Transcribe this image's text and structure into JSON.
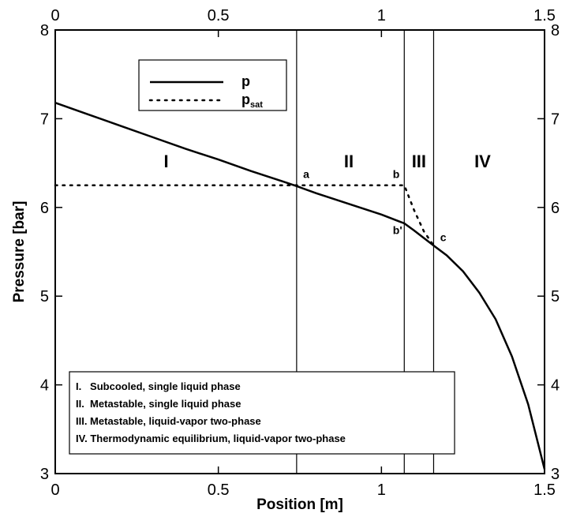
{
  "chart_data": {
    "type": "line",
    "xlabel": "Position [m]",
    "ylabel": "Pressure [bar]",
    "xlim": [
      0,
      1.5
    ],
    "ylim": [
      3,
      8
    ],
    "x_ticks": [
      "0",
      "0.5",
      "1",
      "1.5"
    ],
    "y_ticks": [
      "3",
      "4",
      "5",
      "6",
      "7",
      "8"
    ],
    "secondary_axes": "top and right axes repeat the same tick labels",
    "grid": false,
    "series": [
      {
        "name": "p",
        "style": "solid",
        "x": [
          0,
          0.1,
          0.2,
          0.3,
          0.4,
          0.5,
          0.6,
          0.7,
          0.74,
          0.8,
          0.9,
          1.0,
          1.07,
          1.1,
          1.16,
          1.2,
          1.25,
          1.3,
          1.35,
          1.4,
          1.45,
          1.5
        ],
        "y": [
          7.18,
          7.05,
          6.92,
          6.79,
          6.66,
          6.54,
          6.41,
          6.29,
          6.24,
          6.16,
          6.04,
          5.92,
          5.82,
          5.74,
          5.57,
          5.46,
          5.28,
          5.04,
          4.74,
          4.32,
          3.78,
          3.05
        ]
      },
      {
        "name": "p",
        "name_subscript": "sat",
        "style": "dotted",
        "x": [
          0,
          0.2,
          0.4,
          0.6,
          0.74,
          0.9,
          1.07,
          1.1,
          1.13,
          1.16
        ],
        "y": [
          6.25,
          6.25,
          6.25,
          6.25,
          6.25,
          6.25,
          6.25,
          5.97,
          5.73,
          5.57
        ]
      }
    ],
    "vertical_lines": [
      0.74,
      1.07,
      1.16
    ],
    "regions": [
      {
        "label": "I",
        "x": 0.34,
        "y": 6.45
      },
      {
        "label": "II",
        "x": 0.9,
        "y": 6.45
      },
      {
        "label": "III",
        "x": 1.115,
        "y": 6.45
      },
      {
        "label": "IV",
        "x": 1.31,
        "y": 6.45
      }
    ],
    "annotations": [
      {
        "label": "a",
        "x": 0.76,
        "y": 6.33
      },
      {
        "label": "b",
        "x": 1.035,
        "y": 6.33
      },
      {
        "label": "b'",
        "x": 1.035,
        "y": 5.7
      },
      {
        "label": "c",
        "x": 1.18,
        "y": 5.62
      }
    ],
    "region_key": [
      "I.   Subcooled, single liquid phase",
      "II.  Metastable, single liquid phase",
      "III. Metastable, liquid-vapor two-phase",
      "IV. Thermodynamic equilibrium, liquid-vapor two-phase"
    ],
    "legend_placement": "top-left inside plot"
  }
}
